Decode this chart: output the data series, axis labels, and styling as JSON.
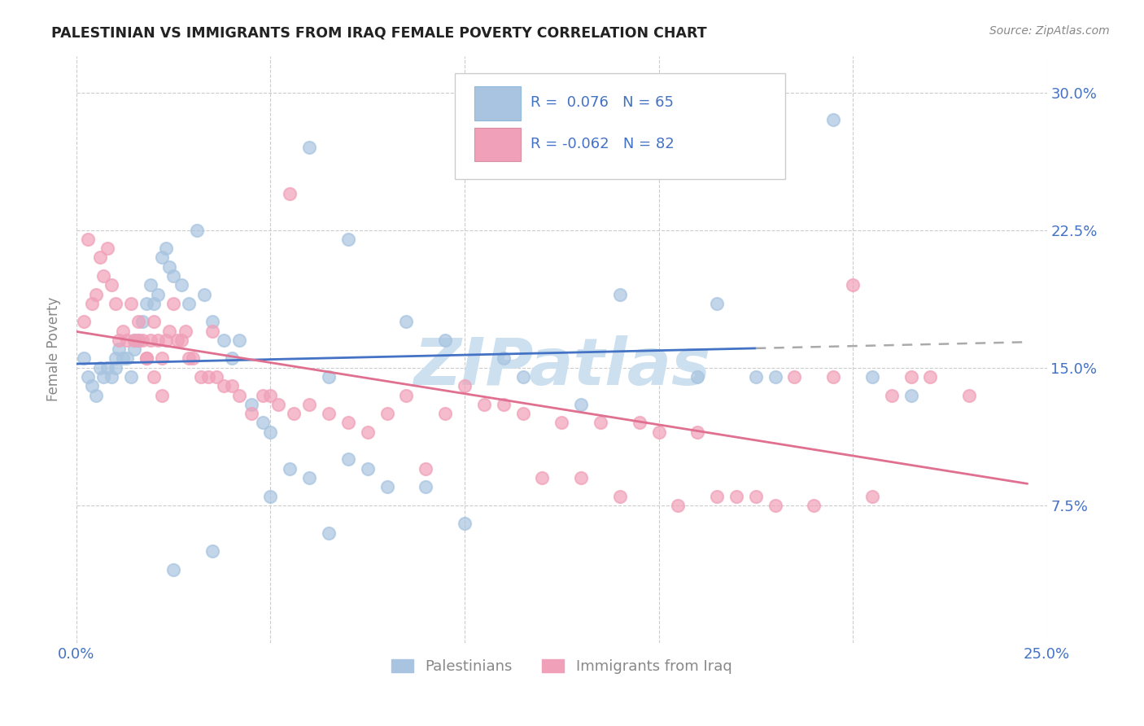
{
  "title": "PALESTINIAN VS IMMIGRANTS FROM IRAQ FEMALE POVERTY CORRELATION CHART",
  "source": "Source: ZipAtlas.com",
  "ylabel": "Female Poverty",
  "ytick_pos": [
    0.075,
    0.15,
    0.225,
    0.3
  ],
  "ytick_labels": [
    "7.5%",
    "15.0%",
    "22.5%",
    "30.0%"
  ],
  "xlim": [
    0.0,
    0.25
  ],
  "ylim": [
    0.0,
    0.32
  ],
  "xtick_positions": [
    0.0,
    0.05,
    0.1,
    0.15,
    0.2,
    0.25
  ],
  "color_blue": "#a8c4e0",
  "color_pink": "#f0a0b8",
  "line_color_blue": "#4472c4",
  "line_color_pink": "#e07090",
  "line_color_dash": "#aaaaaa",
  "watermark_color": "#cce0f0",
  "legend_label1": "Palestinians",
  "legend_label2": "Immigrants from Iraq",
  "palestinians_x": [
    0.002,
    0.003,
    0.004,
    0.005,
    0.006,
    0.007,
    0.008,
    0.009,
    0.01,
    0.01,
    0.011,
    0.012,
    0.013,
    0.014,
    0.015,
    0.015,
    0.016,
    0.017,
    0.018,
    0.019,
    0.02,
    0.021,
    0.022,
    0.023,
    0.024,
    0.025,
    0.027,
    0.029,
    0.031,
    0.033,
    0.035,
    0.038,
    0.04,
    0.042,
    0.045,
    0.048,
    0.05,
    0.055,
    0.06,
    0.065,
    0.07,
    0.075,
    0.08,
    0.09,
    0.1,
    0.115,
    0.13,
    0.15,
    0.165,
    0.18,
    0.195,
    0.205,
    0.215,
    0.06,
    0.07,
    0.085,
    0.095,
    0.11,
    0.14,
    0.16,
    0.175,
    0.05,
    0.065,
    0.025,
    0.035
  ],
  "palestinians_y": [
    0.155,
    0.145,
    0.14,
    0.135,
    0.15,
    0.145,
    0.15,
    0.145,
    0.15,
    0.155,
    0.16,
    0.155,
    0.155,
    0.145,
    0.16,
    0.165,
    0.165,
    0.175,
    0.185,
    0.195,
    0.185,
    0.19,
    0.21,
    0.215,
    0.205,
    0.2,
    0.195,
    0.185,
    0.225,
    0.19,
    0.175,
    0.165,
    0.155,
    0.165,
    0.13,
    0.12,
    0.115,
    0.095,
    0.09,
    0.145,
    0.1,
    0.095,
    0.085,
    0.085,
    0.065,
    0.145,
    0.13,
    0.29,
    0.185,
    0.145,
    0.285,
    0.145,
    0.135,
    0.27,
    0.22,
    0.175,
    0.165,
    0.155,
    0.19,
    0.145,
    0.145,
    0.08,
    0.06,
    0.04,
    0.05
  ],
  "iraq_x": [
    0.002,
    0.003,
    0.004,
    0.005,
    0.006,
    0.007,
    0.008,
    0.009,
    0.01,
    0.011,
    0.012,
    0.013,
    0.014,
    0.015,
    0.016,
    0.017,
    0.018,
    0.019,
    0.02,
    0.021,
    0.022,
    0.023,
    0.024,
    0.025,
    0.026,
    0.027,
    0.028,
    0.029,
    0.03,
    0.032,
    0.034,
    0.036,
    0.038,
    0.04,
    0.042,
    0.045,
    0.048,
    0.052,
    0.056,
    0.06,
    0.065,
    0.07,
    0.075,
    0.08,
    0.09,
    0.1,
    0.11,
    0.12,
    0.13,
    0.14,
    0.155,
    0.17,
    0.185,
    0.2,
    0.215,
    0.23,
    0.035,
    0.05,
    0.095,
    0.105,
    0.115,
    0.125,
    0.145,
    0.16,
    0.175,
    0.19,
    0.205,
    0.22,
    0.055,
    0.085,
    0.135,
    0.15,
    0.165,
    0.18,
    0.195,
    0.21,
    0.016,
    0.018,
    0.02,
    0.022
  ],
  "iraq_y": [
    0.175,
    0.22,
    0.185,
    0.19,
    0.21,
    0.2,
    0.215,
    0.195,
    0.185,
    0.165,
    0.17,
    0.165,
    0.185,
    0.165,
    0.175,
    0.165,
    0.155,
    0.165,
    0.175,
    0.165,
    0.155,
    0.165,
    0.17,
    0.185,
    0.165,
    0.165,
    0.17,
    0.155,
    0.155,
    0.145,
    0.145,
    0.145,
    0.14,
    0.14,
    0.135,
    0.125,
    0.135,
    0.13,
    0.125,
    0.13,
    0.125,
    0.12,
    0.115,
    0.125,
    0.095,
    0.14,
    0.13,
    0.09,
    0.09,
    0.08,
    0.075,
    0.08,
    0.145,
    0.195,
    0.145,
    0.135,
    0.17,
    0.135,
    0.125,
    0.13,
    0.125,
    0.12,
    0.12,
    0.115,
    0.08,
    0.075,
    0.08,
    0.145,
    0.245,
    0.135,
    0.12,
    0.115,
    0.08,
    0.075,
    0.145,
    0.135,
    0.165,
    0.155,
    0.145,
    0.135
  ]
}
